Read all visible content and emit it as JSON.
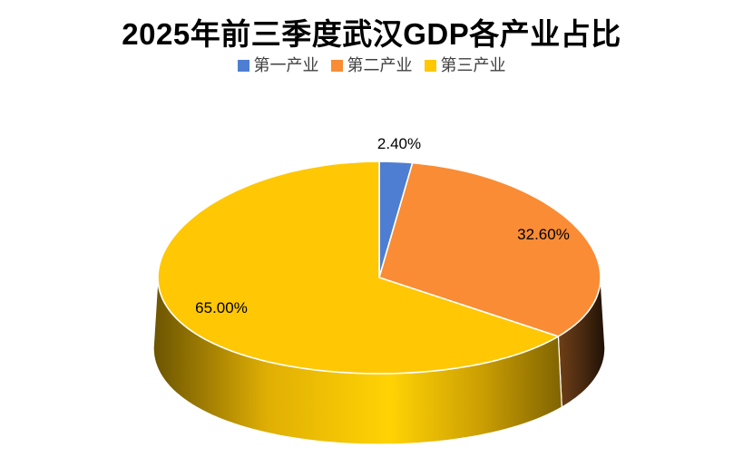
{
  "chart_data": {
    "type": "pie",
    "projection": "3d",
    "title": "2025年前三季度武汉GDP各产业占比",
    "categories": [
      "第一产业",
      "第二产业",
      "第三产业"
    ],
    "values": [
      2.4,
      32.6,
      65.0
    ],
    "value_labels": [
      "2.40%",
      "32.60%",
      "65.00%"
    ],
    "colors": [
      "#4E7ED2",
      "#F98C34",
      "#FFC704"
    ],
    "start_angle_deg": 0,
    "direction": "clockwise",
    "legend_position": "top",
    "background": "#FFFFFF"
  }
}
